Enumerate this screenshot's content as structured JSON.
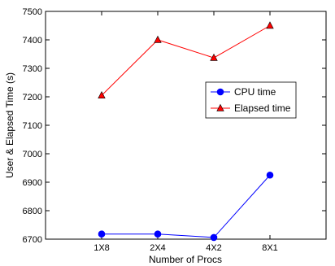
{
  "chart_data": {
    "type": "line",
    "title": "",
    "xlabel": "Number of Procs",
    "ylabel": "User & Elapsed Time (s)",
    "categories": [
      "1X8",
      "2X4",
      "4X2",
      "8X1"
    ],
    "x_axis_padding_categories": 1,
    "ylim": [
      6700,
      7500
    ],
    "yticks": [
      6700,
      6800,
      6900,
      7000,
      7100,
      7200,
      7300,
      7400,
      7500
    ],
    "grid": false,
    "legend_position": "center-right",
    "series": [
      {
        "name": "CPU time",
        "values": [
          6718,
          6718,
          6706,
          6925
        ],
        "color": "#0000ff",
        "marker": "circle"
      },
      {
        "name": "Elapsed time",
        "values": [
          7205,
          7400,
          7337,
          7450
        ],
        "color": "#ff0000",
        "marker": "triangle"
      }
    ]
  }
}
